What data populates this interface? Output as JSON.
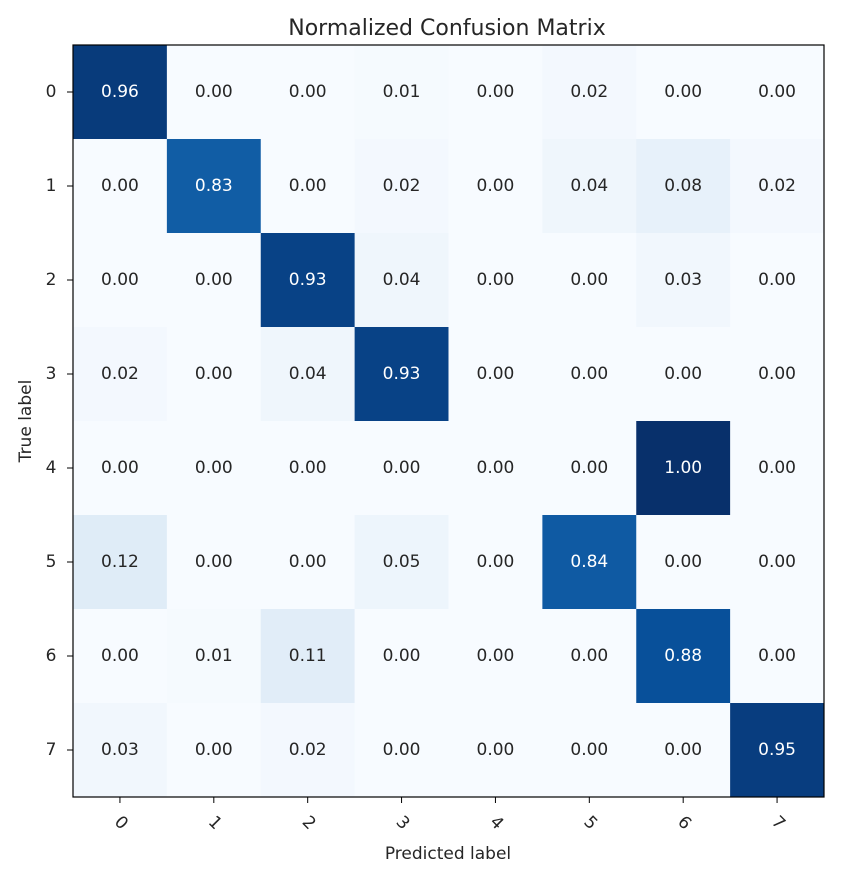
{
  "chart_data": {
    "type": "heatmap",
    "title": "Normalized Confusion Matrix",
    "xlabel": "Predicted label",
    "ylabel": "True label",
    "x_categories": [
      "0",
      "1",
      "2",
      "3",
      "4",
      "5",
      "6",
      "7"
    ],
    "y_categories": [
      "0",
      "1",
      "2",
      "3",
      "4",
      "5",
      "6",
      "7"
    ],
    "values": [
      [
        0.96,
        0.0,
        0.0,
        0.01,
        0.0,
        0.02,
        0.0,
        0.0
      ],
      [
        0.0,
        0.83,
        0.0,
        0.02,
        0.0,
        0.04,
        0.08,
        0.02
      ],
      [
        0.0,
        0.0,
        0.93,
        0.04,
        0.0,
        0.0,
        0.03,
        0.0
      ],
      [
        0.02,
        0.0,
        0.04,
        0.93,
        0.0,
        0.0,
        0.0,
        0.0
      ],
      [
        0.0,
        0.0,
        0.0,
        0.0,
        0.0,
        0.0,
        1.0,
        0.0
      ],
      [
        0.12,
        0.0,
        0.0,
        0.05,
        0.0,
        0.84,
        0.0,
        0.0
      ],
      [
        0.0,
        0.01,
        0.11,
        0.0,
        0.0,
        0.0,
        0.88,
        0.0
      ],
      [
        0.03,
        0.0,
        0.02,
        0.0,
        0.0,
        0.0,
        0.0,
        0.95
      ]
    ],
    "value_range": [
      0,
      1
    ],
    "colormap": "Blues",
    "text_colors": {
      "dark_cells": "#ffffff",
      "light_cells": "#262626"
    },
    "grid": false,
    "x_tick_rotation_deg": 45
  }
}
